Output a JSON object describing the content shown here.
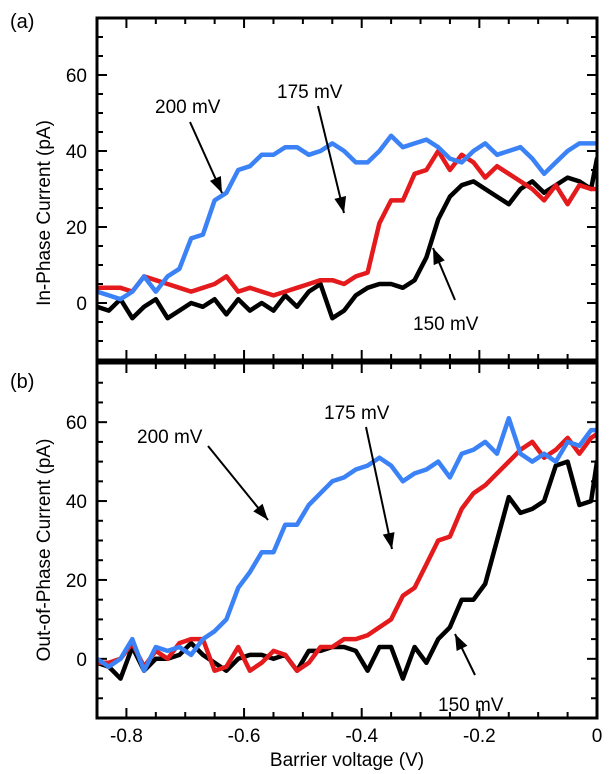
{
  "chart_data": [
    {
      "panel_label": "(a)",
      "type": "line",
      "ylabel": "In-Phase Current (pA)",
      "xlim": [
        -0.85,
        0.0
      ],
      "ylim": [
        -15,
        75
      ],
      "yticks": [
        0,
        20,
        40,
        60
      ],
      "yticklabels": [
        "0",
        "20",
        "40",
        "60"
      ],
      "grid": false,
      "legend": "none",
      "series": [
        {
          "color": "#000000",
          "x": [
            -0.85,
            -0.83,
            -0.81,
            -0.79,
            -0.77,
            -0.75,
            -0.73,
            -0.71,
            -0.69,
            -0.67,
            -0.65,
            -0.63,
            -0.61,
            -0.59,
            -0.57,
            -0.55,
            -0.53,
            -0.51,
            -0.49,
            -0.47,
            -0.45,
            -0.43,
            -0.41,
            -0.39,
            -0.37,
            -0.35,
            -0.33,
            -0.31,
            -0.29,
            -0.27,
            -0.25,
            -0.23,
            -0.21,
            -0.19,
            -0.17,
            -0.15,
            -0.13,
            -0.11,
            -0.09,
            -0.07,
            -0.05,
            -0.03,
            -0.01,
            0.0
          ],
          "y": [
            -1,
            -2,
            1,
            -4,
            -1,
            1,
            -4,
            -2,
            0,
            -1,
            1,
            -3,
            1,
            -2,
            0,
            -2,
            2,
            -1,
            3,
            5,
            -4,
            -2,
            2,
            4,
            5,
            5,
            4,
            6,
            12,
            22,
            28,
            31,
            32,
            30,
            28,
            26,
            30,
            32,
            29,
            31,
            33,
            32,
            30,
            38
          ]
        },
        {
          "color": "#e41a1c",
          "x": [
            -0.85,
            -0.83,
            -0.81,
            -0.79,
            -0.77,
            -0.75,
            -0.73,
            -0.71,
            -0.69,
            -0.67,
            -0.65,
            -0.63,
            -0.61,
            -0.59,
            -0.57,
            -0.55,
            -0.53,
            -0.51,
            -0.49,
            -0.47,
            -0.45,
            -0.43,
            -0.41,
            -0.39,
            -0.37,
            -0.35,
            -0.33,
            -0.31,
            -0.29,
            -0.27,
            -0.25,
            -0.23,
            -0.21,
            -0.19,
            -0.17,
            -0.15,
            -0.13,
            -0.11,
            -0.09,
            -0.07,
            -0.05,
            -0.03,
            -0.01,
            0.0
          ],
          "y": [
            4,
            4,
            4,
            3,
            7,
            6,
            5,
            4,
            3,
            4,
            5,
            7,
            3,
            4,
            3,
            2,
            3,
            4,
            5,
            6,
            6,
            5,
            7,
            8,
            21,
            27,
            27,
            34,
            35,
            40,
            35,
            39,
            37,
            33,
            36,
            34,
            32,
            30,
            27,
            31,
            26,
            31,
            30,
            30
          ]
        },
        {
          "color": "#3b82f6",
          "x": [
            -0.85,
            -0.83,
            -0.81,
            -0.79,
            -0.77,
            -0.75,
            -0.73,
            -0.71,
            -0.69,
            -0.67,
            -0.65,
            -0.63,
            -0.61,
            -0.59,
            -0.57,
            -0.55,
            -0.53,
            -0.51,
            -0.49,
            -0.47,
            -0.45,
            -0.43,
            -0.41,
            -0.39,
            -0.37,
            -0.35,
            -0.33,
            -0.31,
            -0.29,
            -0.27,
            -0.25,
            -0.23,
            -0.21,
            -0.19,
            -0.17,
            -0.15,
            -0.13,
            -0.11,
            -0.09,
            -0.07,
            -0.05,
            -0.03,
            -0.01,
            0.0
          ],
          "y": [
            3,
            2,
            1,
            3,
            7,
            3,
            7,
            9,
            17,
            18,
            27,
            29,
            35,
            36,
            39,
            39,
            41,
            41,
            39,
            40,
            42,
            40,
            37,
            37,
            40,
            44,
            41,
            42,
            43,
            41,
            38,
            37,
            40,
            42,
            39,
            40,
            41,
            38,
            34,
            37,
            40,
            42,
            42,
            42
          ]
        }
      ],
      "annotations": [
        {
          "text": "200 mV",
          "color": "#000000"
        },
        {
          "text": "175 mV",
          "color": "#000000"
        },
        {
          "text": "150 mV",
          "color": "#000000"
        }
      ]
    },
    {
      "panel_label": "(b)",
      "type": "line",
      "xlabel": "Barrier voltage (V)",
      "ylabel": "Out-of-Phase Current (pA)",
      "xlim": [
        -0.85,
        0.0
      ],
      "ylim": [
        -15,
        75
      ],
      "xticks": [
        -0.8,
        -0.6,
        -0.4,
        -0.2,
        0.0
      ],
      "xticklabels": [
        "-0.8",
        "-0.6",
        "-0.4",
        "-0.2",
        "0"
      ],
      "yticks": [
        0,
        20,
        40,
        60
      ],
      "yticklabels": [
        "0",
        "20",
        "40",
        "60"
      ],
      "grid": false,
      "legend": "none",
      "series": [
        {
          "color": "#000000",
          "x": [
            -0.85,
            -0.83,
            -0.81,
            -0.79,
            -0.77,
            -0.75,
            -0.73,
            -0.71,
            -0.69,
            -0.67,
            -0.65,
            -0.63,
            -0.61,
            -0.59,
            -0.57,
            -0.55,
            -0.53,
            -0.51,
            -0.49,
            -0.47,
            -0.45,
            -0.43,
            -0.41,
            -0.39,
            -0.37,
            -0.35,
            -0.33,
            -0.31,
            -0.29,
            -0.27,
            -0.25,
            -0.23,
            -0.21,
            -0.19,
            -0.17,
            -0.15,
            -0.13,
            -0.11,
            -0.09,
            -0.07,
            -0.05,
            -0.03,
            -0.01,
            0.0
          ],
          "y": [
            -1,
            -2,
            -5,
            3,
            -3,
            0,
            0,
            1,
            4,
            1,
            -1,
            -3,
            0,
            1,
            1,
            0,
            1,
            -3,
            2,
            2,
            3,
            3,
            2,
            -3,
            3,
            3,
            -5,
            3,
            -1,
            5,
            8,
            15,
            15,
            19,
            30,
            41,
            37,
            38,
            40,
            49,
            50,
            39,
            40,
            50
          ]
        },
        {
          "color": "#e41a1c",
          "x": [
            -0.85,
            -0.83,
            -0.81,
            -0.79,
            -0.77,
            -0.75,
            -0.73,
            -0.71,
            -0.69,
            -0.67,
            -0.65,
            -0.63,
            -0.61,
            -0.59,
            -0.57,
            -0.55,
            -0.53,
            -0.51,
            -0.49,
            -0.47,
            -0.45,
            -0.43,
            -0.41,
            -0.39,
            -0.37,
            -0.35,
            -0.33,
            -0.31,
            -0.29,
            -0.27,
            -0.25,
            -0.23,
            -0.21,
            -0.19,
            -0.17,
            -0.15,
            -0.13,
            -0.11,
            -0.09,
            -0.07,
            -0.05,
            -0.03,
            -0.01,
            0.0
          ],
          "y": [
            -1,
            -1,
            0,
            4,
            -2,
            2,
            0,
            4,
            5,
            5,
            -3,
            -2,
            3,
            -3,
            -1,
            2,
            1,
            -3,
            -1,
            3,
            3,
            5,
            5,
            6,
            8,
            10,
            16,
            18,
            24,
            30,
            31,
            38,
            42,
            44,
            47,
            50,
            53,
            55,
            51,
            53,
            56,
            52,
            56,
            57
          ]
        },
        {
          "color": "#3b82f6",
          "x": [
            -0.85,
            -0.83,
            -0.81,
            -0.79,
            -0.77,
            -0.75,
            -0.73,
            -0.71,
            -0.69,
            -0.67,
            -0.65,
            -0.63,
            -0.61,
            -0.59,
            -0.57,
            -0.55,
            -0.53,
            -0.51,
            -0.49,
            -0.47,
            -0.45,
            -0.43,
            -0.41,
            -0.39,
            -0.37,
            -0.35,
            -0.33,
            -0.31,
            -0.29,
            -0.27,
            -0.25,
            -0.23,
            -0.21,
            -0.19,
            -0.17,
            -0.15,
            -0.13,
            -0.11,
            -0.09,
            -0.07,
            -0.05,
            -0.03,
            -0.01,
            0.0
          ],
          "y": [
            0,
            -2,
            0,
            5,
            -3,
            3,
            2,
            3,
            1,
            5,
            7,
            10,
            18,
            22,
            27,
            27,
            34,
            34,
            39,
            42,
            45,
            46,
            48,
            49,
            51,
            49,
            45,
            47,
            48,
            50,
            46,
            52,
            53,
            55,
            52,
            61,
            52,
            50,
            52,
            50,
            55,
            54,
            58,
            58
          ]
        }
      ],
      "annotations": [
        {
          "text": "200 mV",
          "color": "#000000"
        },
        {
          "text": "175 mV",
          "color": "#000000"
        },
        {
          "text": "150 mV",
          "color": "#000000"
        }
      ]
    }
  ]
}
